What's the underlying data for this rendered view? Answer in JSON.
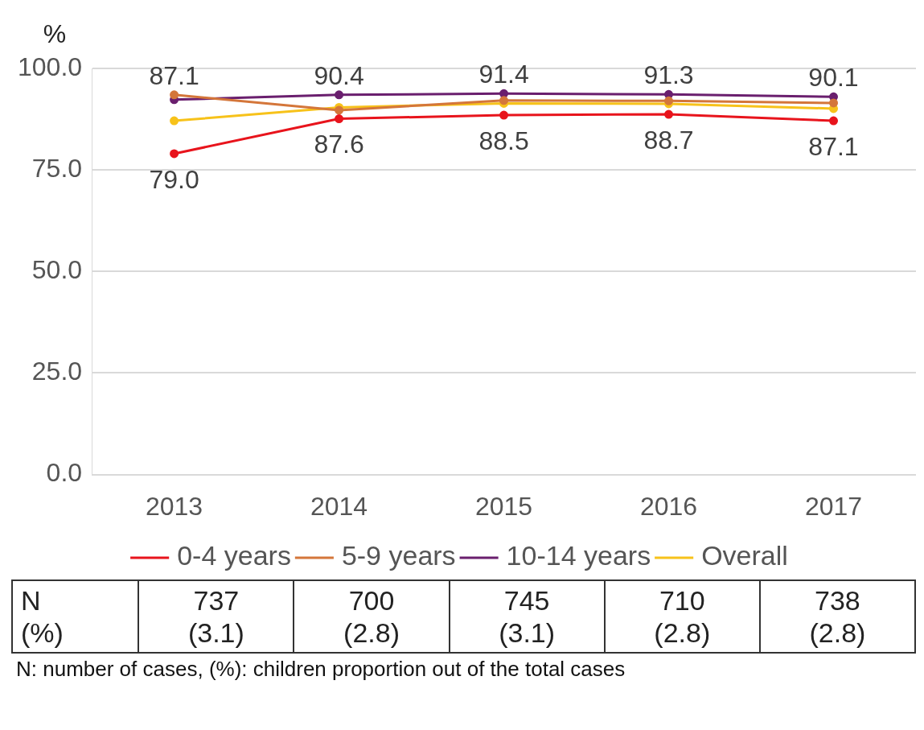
{
  "chart_data": {
    "type": "line",
    "ylabel": "%",
    "categories": [
      "2013",
      "2014",
      "2015",
      "2016",
      "2017"
    ],
    "series": [
      {
        "name": "0-4 years",
        "color": "#e8141c",
        "values": [
          79.0,
          87.6,
          88.5,
          88.7,
          87.1
        ],
        "value_labels": [
          "79.0",
          "87.6",
          "88.5",
          "88.7",
          "87.1"
        ]
      },
      {
        "name": "5-9 years",
        "color": "#d4763a",
        "values": [
          93.5,
          89.7,
          92.1,
          92.0,
          91.5
        ]
      },
      {
        "name": "10-14 years",
        "color": "#6a1f6e",
        "values": [
          92.3,
          93.5,
          93.8,
          93.6,
          93.0
        ]
      },
      {
        "name": "Overall",
        "color": "#f7c21a",
        "values": [
          87.1,
          90.4,
          91.4,
          91.3,
          90.1
        ],
        "value_labels": [
          "87.1",
          "90.4",
          "91.4",
          "91.3",
          "90.1"
        ]
      }
    ],
    "ylim": [
      0,
      100
    ],
    "yticks": [
      {
        "value": 0,
        "label": "0.0"
      },
      {
        "value": 25,
        "label": "25.0"
      },
      {
        "value": 50,
        "label": "50.0"
      },
      {
        "value": 75,
        "label": "75.0"
      },
      {
        "value": 100,
        "label": "100.0"
      }
    ],
    "grid": "y",
    "legend": "bottom",
    "marker": "circle",
    "line_style": "solid",
    "annotations": [
      "N\n(%)",
      "737\n(3.1)",
      "700\n(2.8)",
      "745\n(3.1)",
      "710\n(2.8)",
      "738\n(2.8)",
      "N: number of cases, (%): children proportion out of the total cases"
    ]
  }
}
